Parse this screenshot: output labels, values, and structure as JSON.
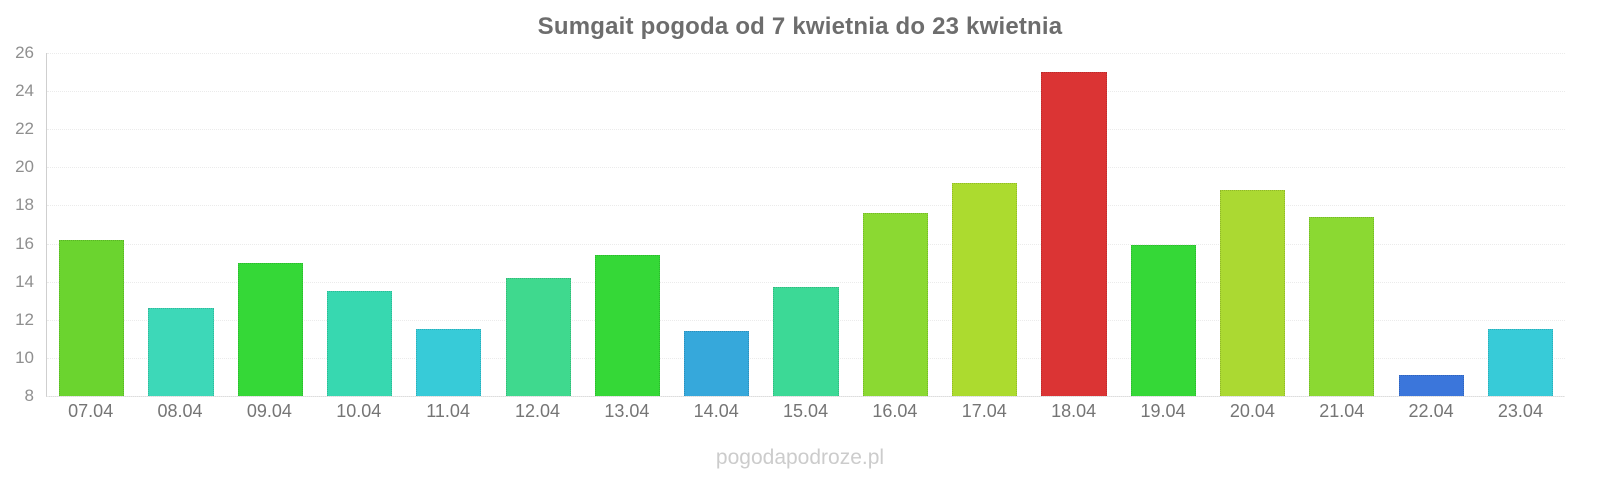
{
  "title": "Sumgait pogoda od 7 kwietnia do 23 kwietnia",
  "watermark": "pogodapodroze.pl",
  "chart_data": {
    "type": "bar",
    "title": "Sumgait pogoda od 7 kwietnia do 23 kwietnia",
    "xlabel": "",
    "ylabel": "",
    "categories": [
      "07.04",
      "08.04",
      "09.04",
      "10.04",
      "11.04",
      "12.04",
      "13.04",
      "14.04",
      "15.04",
      "16.04",
      "17.04",
      "18.04",
      "19.04",
      "20.04",
      "21.04",
      "22.04",
      "23.04"
    ],
    "values": [
      16.2,
      12.6,
      15.0,
      13.5,
      11.5,
      14.2,
      15.4,
      11.4,
      13.7,
      17.6,
      19.2,
      25.0,
      15.9,
      18.8,
      17.4,
      9.1,
      11.5
    ],
    "bar_colors": [
      "#6bd42f",
      "#3dd8b8",
      "#35d837",
      "#37d8b0",
      "#37cbd8",
      "#3fd98e",
      "#35d837",
      "#36a8db",
      "#3cd996",
      "#8bd932",
      "#acdb2f",
      "#db3434",
      "#35d837",
      "#abd932",
      "#8bd932",
      "#3b76db",
      "#37cbd8"
    ],
    "ylim": [
      8,
      26
    ],
    "y_ticks": [
      26,
      24,
      22,
      20,
      18,
      16,
      14,
      12,
      10,
      8
    ],
    "grid": "horizontal-dotted",
    "legend": "none"
  },
  "colors": {
    "title_text": "#6d6d6d",
    "axis_label_text": "#8f8f8f",
    "x_label_text": "#757575",
    "watermark_text": "#cccccc",
    "axis_line": "#cfcfcf",
    "gridline": "#ebebeb",
    "background": "#ffffff"
  }
}
